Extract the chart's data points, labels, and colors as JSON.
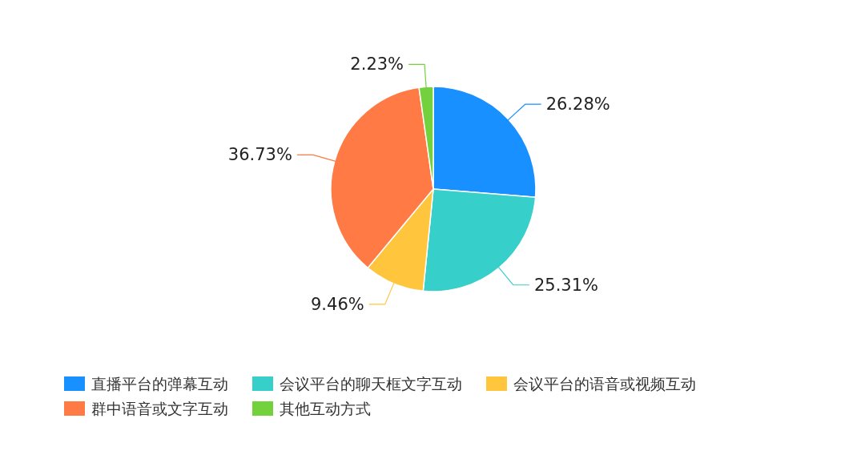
{
  "chart_data": {
    "type": "pie",
    "categories": [
      "直播平台的弹幕互动",
      "会议平台的聊天框文字互动",
      "会议平台的语音或视频互动",
      "群中语音或文字互动",
      "其他互动方式"
    ],
    "values": [
      26.28,
      25.31,
      9.46,
      36.73,
      2.23
    ],
    "value_labels": [
      "26.28%",
      "25.31%",
      "9.46%",
      "36.73%",
      "2.23%"
    ],
    "colors": [
      "#1890ff",
      "#36cfca",
      "#ffc53d",
      "#ff7a45",
      "#73d13d"
    ],
    "legend": "bottom"
  }
}
